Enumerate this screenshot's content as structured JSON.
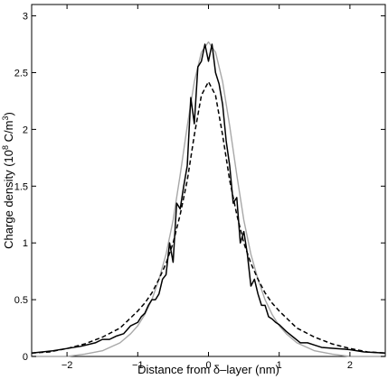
{
  "chart_data": {
    "type": "line",
    "title": "",
    "xlabel": "Distance from δ–layer  (nm)",
    "ylabel_main": "Charge density  (10",
    "ylabel_sup": "8",
    "ylabel_mid": " C/m",
    "ylabel_sup2": "3",
    "ylabel_end": ")",
    "xlim": [
      -2.5,
      2.5
    ],
    "ylim": [
      0,
      3.1
    ],
    "xticks": [
      -2,
      -1,
      0,
      1,
      2
    ],
    "xtick_labels": [
      "−2",
      "−1",
      "0",
      "1",
      "2"
    ],
    "yticks": [
      0,
      0.5,
      1,
      1.5,
      2,
      2.5,
      3
    ],
    "ytick_labels": [
      "0",
      "0.5",
      "1",
      "1.5",
      "2",
      "2.5",
      "3"
    ],
    "grid": false,
    "series": [
      {
        "style": "solid-black",
        "color": "#000000",
        "x": [
          -2.5,
          -2.2,
          -2.0,
          -1.8,
          -1.6,
          -1.5,
          -1.4,
          -1.3,
          -1.2,
          -1.1,
          -1.0,
          -0.95,
          -0.9,
          -0.85,
          -0.8,
          -0.75,
          -0.7,
          -0.65,
          -0.6,
          -0.55,
          -0.5,
          -0.45,
          -0.4,
          -0.35,
          -0.3,
          -0.25,
          -0.2,
          -0.15,
          -0.1,
          -0.05,
          0.0,
          0.05,
          0.1,
          0.15,
          0.2,
          0.25,
          0.3,
          0.35,
          0.4,
          0.45,
          0.5,
          0.55,
          0.6,
          0.65,
          0.7,
          0.75,
          0.8,
          0.85,
          0.9,
          0.95,
          1.0,
          1.1,
          1.2,
          1.3,
          1.4,
          1.5,
          1.6,
          1.8,
          2.0,
          2.2,
          2.5
        ],
        "y": [
          0.03,
          0.05,
          0.07,
          0.09,
          0.12,
          0.15,
          0.15,
          0.18,
          0.2,
          0.27,
          0.3,
          0.35,
          0.38,
          0.45,
          0.5,
          0.5,
          0.55,
          0.68,
          0.72,
          1.0,
          0.83,
          1.35,
          1.3,
          1.5,
          1.68,
          2.28,
          2.05,
          2.55,
          2.6,
          2.75,
          2.6,
          2.75,
          2.5,
          2.4,
          2.22,
          1.9,
          1.68,
          1.35,
          1.4,
          1.0,
          1.1,
          0.9,
          0.62,
          0.68,
          0.55,
          0.45,
          0.45,
          0.35,
          0.33,
          0.3,
          0.28,
          0.22,
          0.17,
          0.12,
          0.12,
          0.1,
          0.08,
          0.07,
          0.06,
          0.04,
          0.03
        ]
      },
      {
        "style": "dashed-black",
        "color": "#000000",
        "x": [
          -2.5,
          -2.25,
          -2.0,
          -1.75,
          -1.5,
          -1.25,
          -1.0,
          -0.9,
          -0.8,
          -0.7,
          -0.6,
          -0.5,
          -0.4,
          -0.3,
          -0.2,
          -0.1,
          0.0,
          0.1,
          0.2,
          0.3,
          0.4,
          0.5,
          0.6,
          0.7,
          0.8,
          0.9,
          1.0,
          1.25,
          1.5,
          1.75,
          2.0,
          2.25,
          2.5
        ],
        "y": [
          0.03,
          0.04,
          0.07,
          0.11,
          0.17,
          0.25,
          0.4,
          0.47,
          0.56,
          0.68,
          0.82,
          1.0,
          1.25,
          1.55,
          1.95,
          2.3,
          2.42,
          2.3,
          1.95,
          1.55,
          1.25,
          1.0,
          0.82,
          0.68,
          0.56,
          0.47,
          0.4,
          0.25,
          0.17,
          0.11,
          0.07,
          0.04,
          0.03
        ]
      },
      {
        "style": "solid-gray",
        "color": "#a8a8a8",
        "x": [
          -2.5,
          -2.25,
          -2.0,
          -1.75,
          -1.5,
          -1.25,
          -1.1,
          -1.0,
          -0.9,
          -0.8,
          -0.7,
          -0.6,
          -0.5,
          -0.4,
          -0.3,
          -0.2,
          -0.1,
          0.0,
          0.1,
          0.2,
          0.3,
          0.4,
          0.5,
          0.6,
          0.7,
          0.8,
          0.9,
          1.0,
          1.1,
          1.25,
          1.5,
          1.75,
          2.0,
          2.25,
          2.5
        ],
        "y": [
          0.0,
          0.0,
          0.0,
          0.02,
          0.05,
          0.12,
          0.2,
          0.27,
          0.37,
          0.5,
          0.68,
          0.9,
          1.2,
          1.6,
          2.03,
          2.42,
          2.68,
          2.77,
          2.68,
          2.42,
          2.03,
          1.6,
          1.2,
          0.9,
          0.68,
          0.5,
          0.37,
          0.27,
          0.2,
          0.12,
          0.05,
          0.02,
          0.0,
          0.0,
          0.0
        ]
      }
    ]
  }
}
